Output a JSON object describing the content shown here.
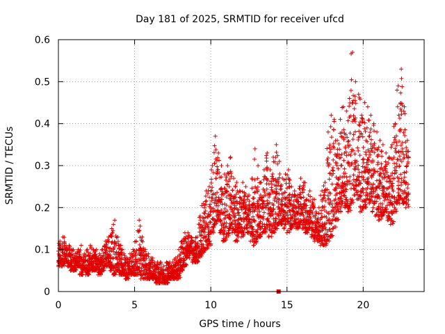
{
  "chart_data": {
    "type": "scatter",
    "title": "Day 181 of 2025, SRMTID for receiver ufcd",
    "xlabel": "GPS time / hours",
    "ylabel": "SRMTID / TECUs",
    "xlim": [
      0,
      24
    ],
    "ylim": [
      0,
      0.6
    ],
    "x_ticks": [
      0,
      5,
      10,
      15,
      20
    ],
    "x_tick_labels": [
      "0",
      "5",
      "10",
      "15",
      "20"
    ],
    "y_ticks": [
      0,
      0.1,
      0.2,
      0.3,
      0.4,
      0.5,
      0.6
    ],
    "y_tick_labels": [
      "0",
      "0.1",
      "0.2",
      "0.3",
      "0.4",
      "0.5",
      "0.6"
    ],
    "grid": true,
    "series": [
      {
        "name": "SRMTID",
        "color": "#e00000",
        "marker": "plus",
        "x": [
          0.0,
          0.2,
          0.4,
          0.6,
          0.8,
          1.0,
          1.2,
          1.4,
          1.6,
          1.8,
          2.0,
          2.2,
          2.4,
          2.6,
          2.8,
          3.0,
          3.2,
          3.4,
          3.6,
          3.8,
          4.0,
          4.2,
          4.4,
          4.6,
          4.8,
          5.0,
          5.2,
          5.4,
          5.6,
          5.8,
          6.0,
          6.2,
          6.4,
          6.6,
          6.8,
          7.0,
          7.2,
          7.4,
          7.6,
          7.8,
          8.0,
          8.2,
          8.4,
          8.6,
          8.8,
          9.0,
          9.2,
          9.4,
          9.6,
          9.8,
          10.0,
          10.2,
          10.4,
          10.6,
          10.8,
          11.0,
          11.2,
          11.4,
          11.6,
          11.8,
          12.0,
          12.2,
          12.4,
          12.6,
          12.8,
          13.0,
          13.2,
          13.4,
          13.6,
          13.8,
          14.0,
          14.2,
          14.4,
          14.6,
          14.8,
          15.0,
          15.2,
          15.4,
          15.6,
          15.8,
          16.0,
          16.2,
          16.4,
          16.6,
          16.8,
          17.0,
          17.2,
          17.4,
          17.6,
          17.8,
          18.0,
          18.2,
          18.4,
          18.6,
          18.8,
          19.0,
          19.2,
          19.4,
          19.6,
          19.8,
          20.0,
          20.2,
          20.4,
          20.6,
          20.8,
          21.0,
          21.2,
          21.4,
          21.6,
          21.8,
          22.0,
          22.2,
          22.4,
          22.6,
          22.8
        ],
        "low": [
          0.06,
          0.06,
          0.07,
          0.06,
          0.05,
          0.05,
          0.06,
          0.04,
          0.05,
          0.04,
          0.05,
          0.05,
          0.05,
          0.04,
          0.05,
          0.06,
          0.06,
          0.05,
          0.04,
          0.05,
          0.04,
          0.04,
          0.03,
          0.04,
          0.04,
          0.04,
          0.04,
          0.03,
          0.03,
          0.03,
          0.03,
          0.03,
          0.02,
          0.02,
          0.02,
          0.02,
          0.03,
          0.03,
          0.03,
          0.03,
          0.05,
          0.06,
          0.08,
          0.09,
          0.07,
          0.07,
          0.08,
          0.09,
          0.1,
          0.11,
          0.14,
          0.16,
          0.17,
          0.14,
          0.12,
          0.13,
          0.15,
          0.14,
          0.12,
          0.14,
          0.13,
          0.15,
          0.14,
          0.12,
          0.11,
          0.12,
          0.13,
          0.14,
          0.15,
          0.13,
          0.14,
          0.15,
          0.16,
          0.16,
          0.15,
          0.14,
          0.15,
          0.16,
          0.15,
          0.16,
          0.15,
          0.14,
          0.15,
          0.13,
          0.12,
          0.12,
          0.11,
          0.11,
          0.12,
          0.13,
          0.15,
          0.17,
          0.19,
          0.21,
          0.2,
          0.19,
          0.21,
          0.23,
          0.22,
          0.19,
          0.2,
          0.22,
          0.21,
          0.19,
          0.18,
          0.17,
          0.18,
          0.19,
          0.17,
          0.16,
          0.19,
          0.21,
          0.22,
          0.21,
          0.2
        ],
        "high": [
          0.12,
          0.13,
          0.11,
          0.11,
          0.1,
          0.09,
          0.1,
          0.11,
          0.09,
          0.1,
          0.11,
          0.1,
          0.1,
          0.09,
          0.1,
          0.12,
          0.13,
          0.15,
          0.17,
          0.13,
          0.11,
          0.09,
          0.08,
          0.09,
          0.1,
          0.12,
          0.17,
          0.13,
          0.1,
          0.09,
          0.08,
          0.07,
          0.07,
          0.07,
          0.06,
          0.07,
          0.07,
          0.07,
          0.08,
          0.1,
          0.12,
          0.14,
          0.14,
          0.13,
          0.12,
          0.13,
          0.18,
          0.21,
          0.24,
          0.25,
          0.3,
          0.37,
          0.33,
          0.3,
          0.28,
          0.3,
          0.32,
          0.27,
          0.26,
          0.24,
          0.26,
          0.25,
          0.23,
          0.27,
          0.34,
          0.3,
          0.26,
          0.29,
          0.33,
          0.29,
          0.32,
          0.35,
          0.31,
          0.27,
          0.28,
          0.29,
          0.25,
          0.24,
          0.23,
          0.27,
          0.26,
          0.22,
          0.24,
          0.22,
          0.19,
          0.2,
          0.24,
          0.26,
          0.38,
          0.42,
          0.41,
          0.36,
          0.41,
          0.44,
          0.43,
          0.46,
          0.57,
          0.5,
          0.47,
          0.42,
          0.45,
          0.44,
          0.42,
          0.4,
          0.38,
          0.36,
          0.35,
          0.33,
          0.32,
          0.35,
          0.4,
          0.49,
          0.53,
          0.44,
          0.36
        ]
      }
    ],
    "annotations": [
      {
        "type": "square-marker",
        "x": 14.45,
        "y": 0.0,
        "color": "#e00000"
      }
    ]
  }
}
